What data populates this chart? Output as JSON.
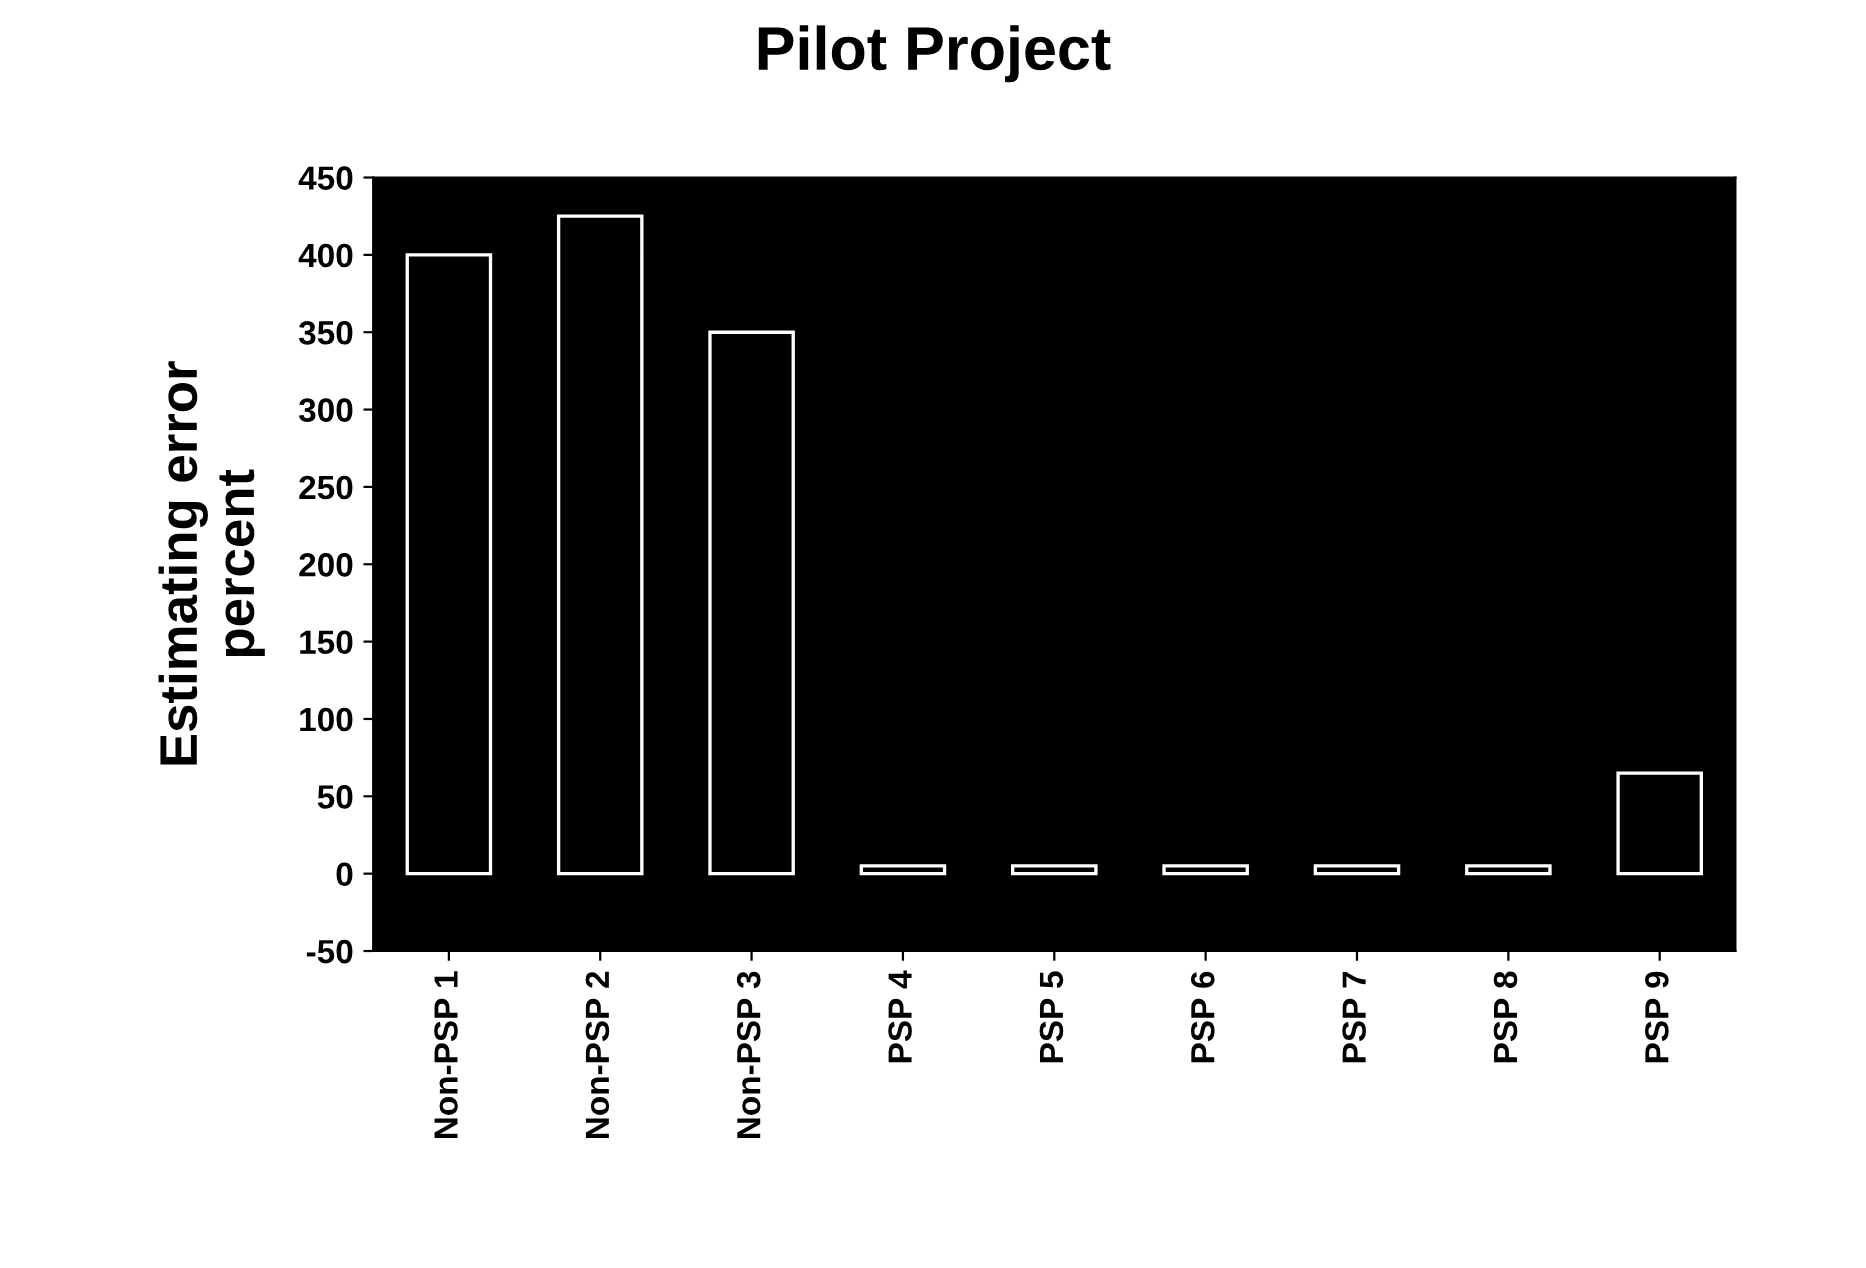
{
  "chart_data": {
    "type": "bar",
    "title": "Pilot Project",
    "ylabel": "Estimating error\npercent",
    "categories": [
      "Non-PSP 1",
      "Non-PSP 2",
      "Non-PSP 3",
      "PSP 4",
      "PSP 5",
      "PSP 6",
      "PSP 7",
      "PSP 8",
      "PSP 9"
    ],
    "values": [
      400,
      425,
      350,
      5,
      5,
      5,
      5,
      5,
      65
    ],
    "color": "#000000",
    "ylim": [
      -50,
      450
    ],
    "yticks": [
      -50,
      0,
      50,
      100,
      150,
      200,
      250,
      300,
      350,
      400,
      450
    ]
  }
}
